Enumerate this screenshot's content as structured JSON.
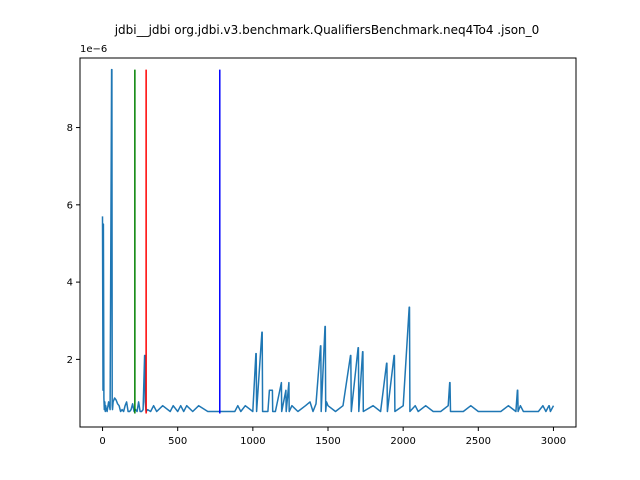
{
  "chart_data": {
    "type": "line",
    "title": "jdbi__jdbi org.jdbi.v3.benchmark.QualifiersBenchmark.neq4To4 .json_0",
    "xlabel": "",
    "ylabel": "",
    "y_scale_label": "1e−6",
    "xlim": [
      -150,
      3150
    ],
    "ylim": [
      2.5e-07,
      9.8e-06
    ],
    "xticks": [
      0,
      500,
      1000,
      1500,
      2000,
      2500,
      3000
    ],
    "xtick_labels": [
      "0",
      "500",
      "1000",
      "1500",
      "2000",
      "2500",
      "3000"
    ],
    "yticks": [
      2e-06,
      4e-06,
      6e-06,
      8e-06
    ],
    "ytick_labels": [
      "2",
      "4",
      "6",
      "8"
    ],
    "grid": false,
    "series": [
      {
        "color": "#1f77b4",
        "x": [
          0,
          3,
          6,
          9,
          12,
          15,
          18,
          21,
          25,
          30,
          40,
          50,
          60,
          62,
          64,
          66,
          70,
          80,
          90,
          100,
          110,
          120,
          130,
          140,
          150,
          160,
          170,
          180,
          190,
          200,
          210,
          220,
          230,
          240,
          250,
          260,
          270,
          280,
          282,
          284,
          290,
          300,
          320,
          340,
          360,
          400,
          450,
          470,
          500,
          520,
          540,
          560,
          600,
          640,
          700,
          800,
          880,
          900,
          920,
          950,
          1000,
          1020,
          1022,
          1025,
          1060,
          1062,
          1065,
          1100,
          1110,
          1112,
          1130,
          1132,
          1150,
          1190,
          1192,
          1220,
          1222,
          1240,
          1242,
          1260,
          1300,
          1350,
          1380,
          1400,
          1420,
          1450,
          1452,
          1455,
          1480,
          1482,
          1485,
          1490,
          1500,
          1550,
          1600,
          1650,
          1652,
          1655,
          1700,
          1702,
          1705,
          1730,
          1732,
          1735,
          1800,
          1850,
          1890,
          1892,
          1895,
          1940,
          1942,
          1945,
          2000,
          2040,
          2042,
          2045,
          2080,
          2100,
          2150,
          2200,
          2250,
          2300,
          2310,
          2312,
          2315,
          2400,
          2450,
          2500,
          2550,
          2600,
          2650,
          2700,
          2750,
          2760,
          2762,
          2765,
          2780,
          2800,
          2850,
          2900,
          2930,
          2950,
          2970,
          2972,
          2980,
          3000
        ],
        "y": [
          5.7e-06,
          1.2e-06,
          5.5e-06,
          1e-06,
          7e-07,
          9e-07,
          6.5e-07,
          8e-07,
          7e-07,
          6.5e-07,
          9e-07,
          7e-07,
          9.5e-06,
          9.5e-06,
          8e-07,
          7e-07,
          9e-07,
          1e-06,
          9.5e-07,
          8.5e-07,
          8e-07,
          6.5e-07,
          7e-07,
          6.5e-07,
          8e-07,
          9e-07,
          6.5e-07,
          6.5e-07,
          7e-07,
          8.5e-07,
          6.5e-07,
          7e-07,
          6.5e-07,
          9e-07,
          6.5e-07,
          6.5e-07,
          7e-07,
          2.1e-06,
          2.1e-06,
          9e-07,
          6.5e-07,
          7e-07,
          6.5e-07,
          8e-07,
          6.5e-07,
          8e-07,
          6.5e-07,
          8e-07,
          6.5e-07,
          8e-07,
          6.5e-07,
          8e-07,
          6.5e-07,
          8e-07,
          6.5e-07,
          6.5e-07,
          6.5e-07,
          8e-07,
          6.5e-07,
          8e-07,
          6.5e-07,
          2.15e-06,
          2.15e-06,
          6.5e-07,
          2.7e-06,
          2.7e-06,
          6.5e-07,
          6.5e-07,
          1.2e-06,
          1.2e-06,
          1.2e-06,
          6.5e-07,
          6.5e-07,
          1.4e-06,
          6.5e-07,
          1.2e-06,
          6.5e-07,
          1.4e-06,
          6.5e-07,
          8e-07,
          6.5e-07,
          8e-07,
          9e-07,
          6.5e-07,
          8.5e-07,
          2.35e-06,
          2.35e-06,
          6.5e-07,
          2.85e-06,
          2.85e-06,
          6.5e-07,
          9e-07,
          8e-07,
          6.5e-07,
          8e-07,
          2.1e-06,
          2.1e-06,
          6.5e-07,
          2.3e-06,
          2.3e-06,
          6.5e-07,
          2.2e-06,
          2.2e-06,
          6.5e-07,
          8e-07,
          6.5e-07,
          1.9e-06,
          1.9e-06,
          6.5e-07,
          2.1e-06,
          2.1e-06,
          6.5e-07,
          8e-07,
          3.35e-06,
          3.35e-06,
          6.5e-07,
          8e-07,
          6.5e-07,
          8e-07,
          6.5e-07,
          6.5e-07,
          8e-07,
          1.4e-06,
          1.4e-06,
          6.5e-07,
          6.5e-07,
          8e-07,
          6.5e-07,
          6.5e-07,
          6.5e-07,
          6.5e-07,
          8e-07,
          6.5e-07,
          1.2e-06,
          1.2e-06,
          6.5e-07,
          8e-07,
          6.5e-07,
          6.5e-07,
          6.5e-07,
          8e-07,
          6.5e-07,
          8e-07,
          8e-07,
          6.5e-07,
          8e-07
        ]
      }
    ],
    "vlines": [
      {
        "x": 215,
        "ymin": 6e-07,
        "ymax": 9.5e-06,
        "color": "#008000"
      },
      {
        "x": 290,
        "ymin": 6e-07,
        "ymax": 9.5e-06,
        "color": "#ff0000"
      },
      {
        "x": 780,
        "ymin": 6e-07,
        "ymax": 9.5e-06,
        "color": "#0000ff"
      }
    ]
  }
}
